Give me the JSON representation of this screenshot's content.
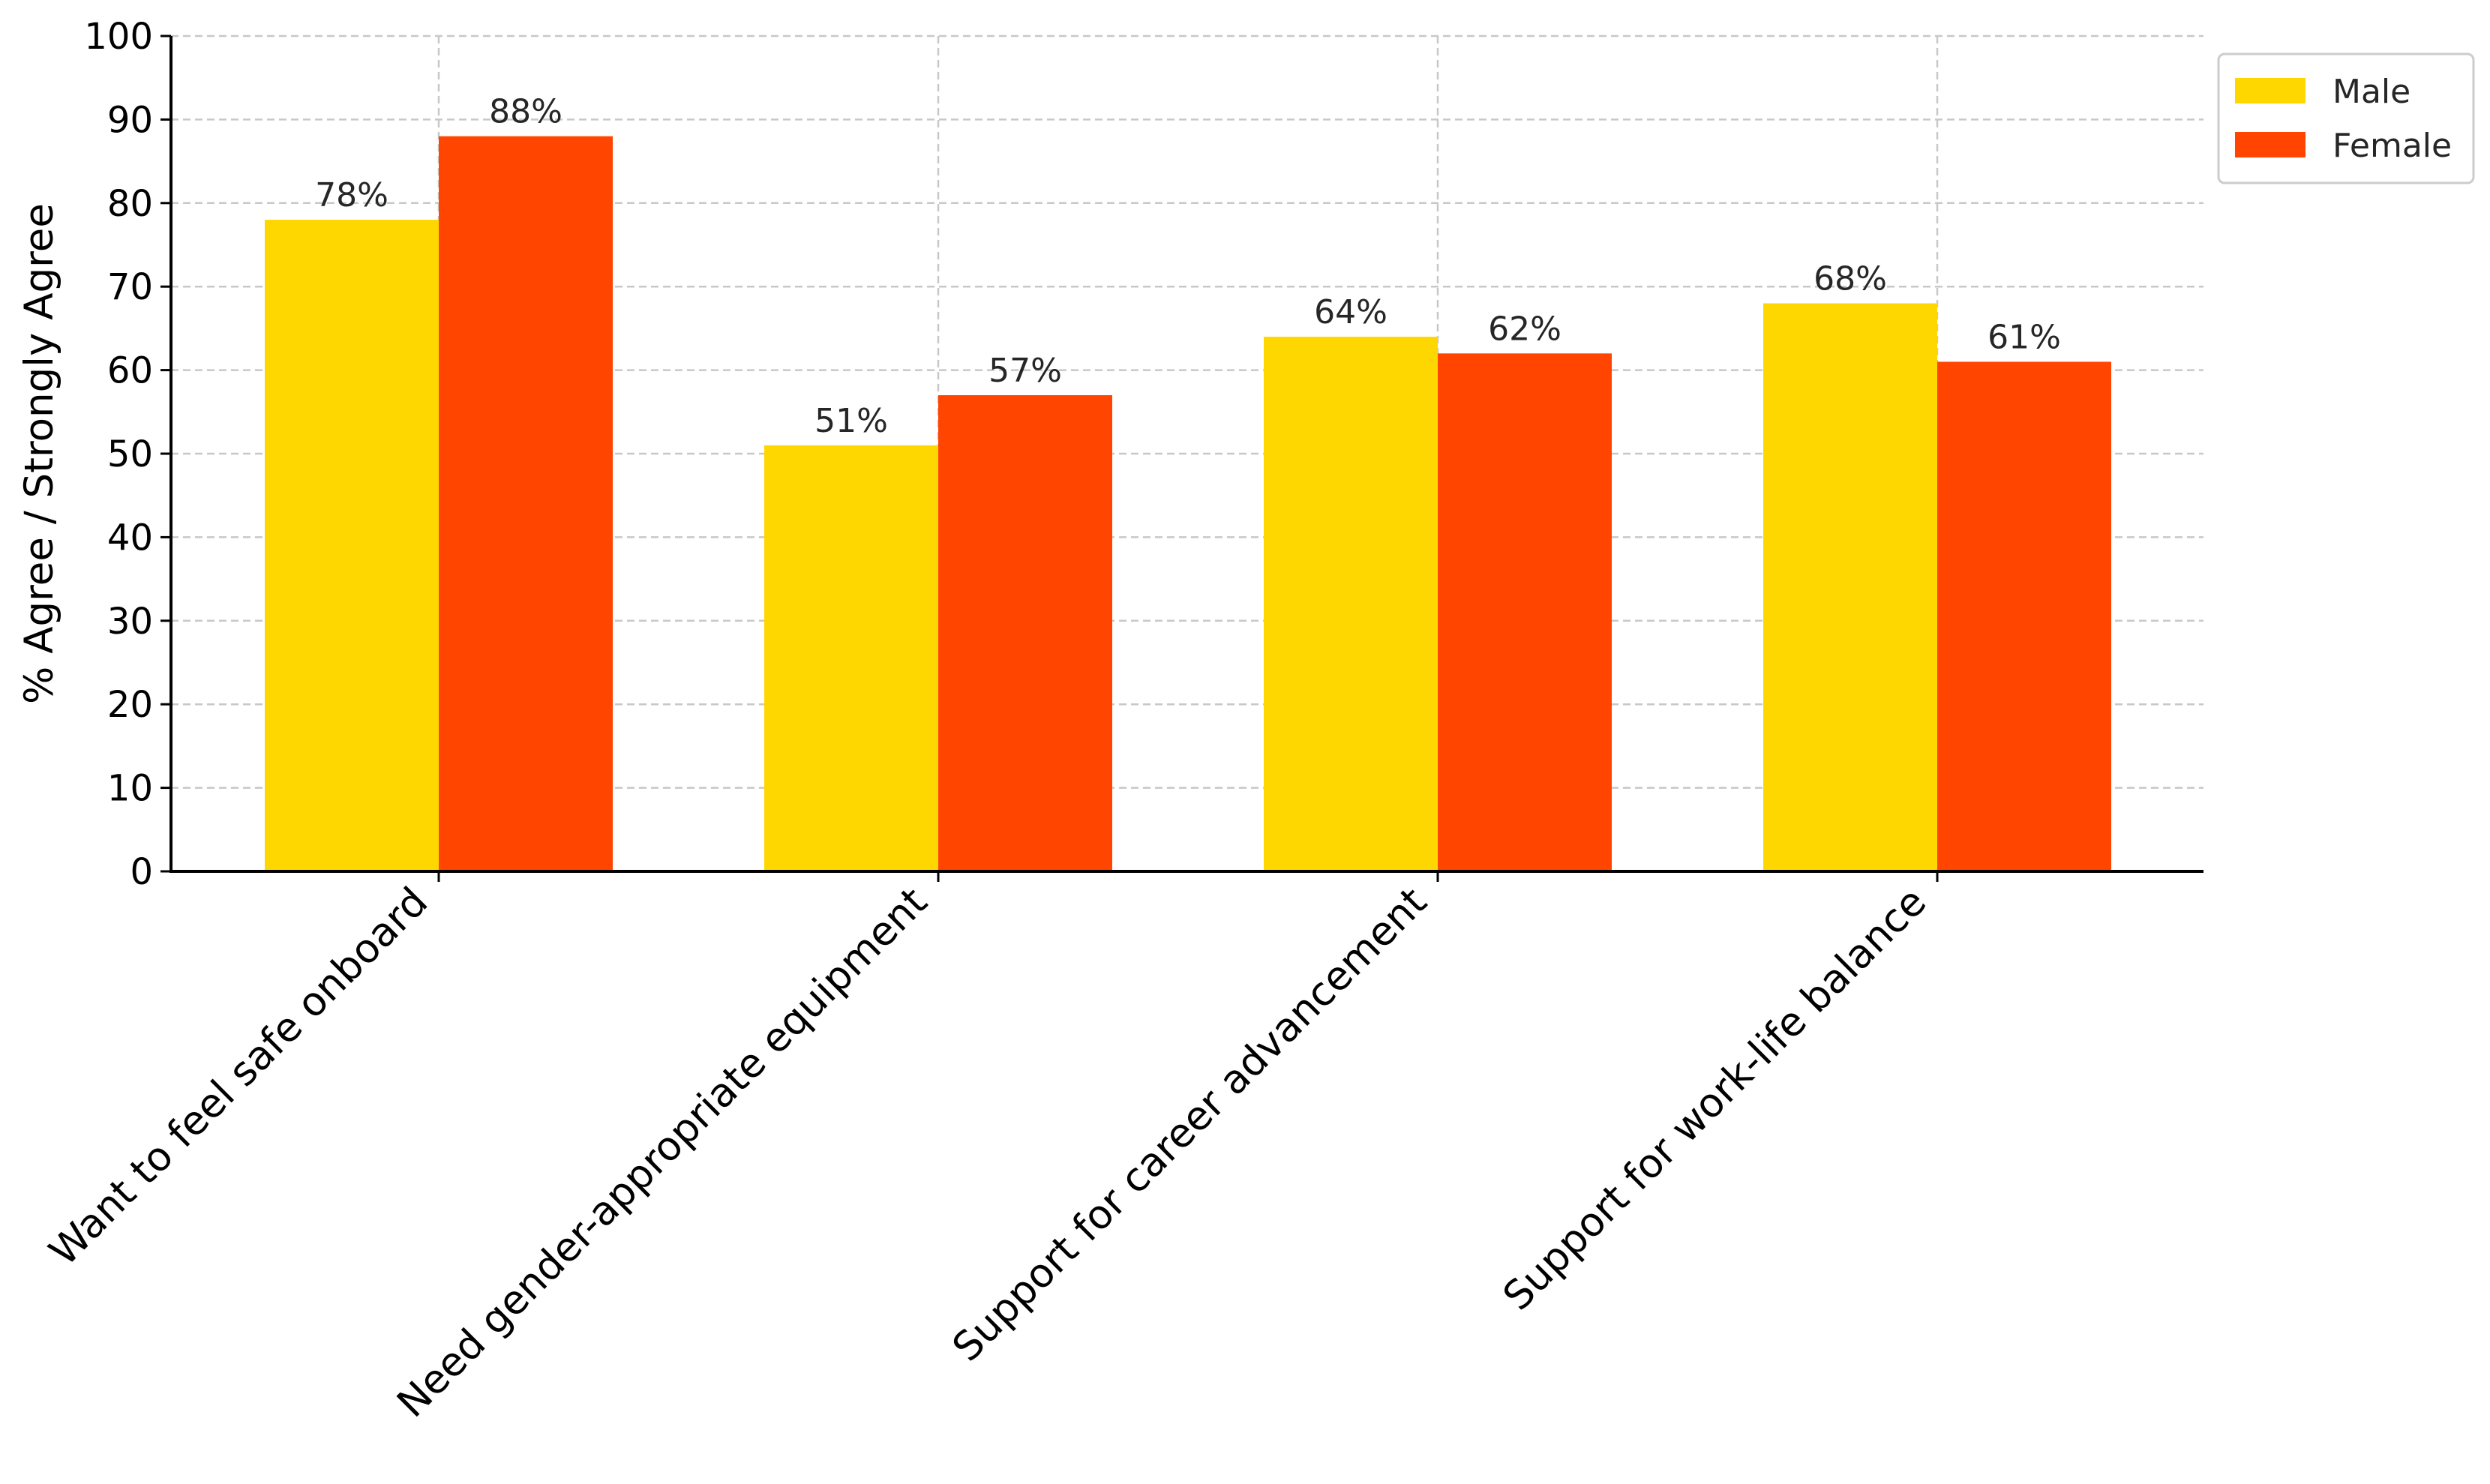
{
  "chart_data": {
    "type": "bar",
    "title": "",
    "xlabel": "",
    "ylabel": "% Agree / Strongly Agree",
    "ylim": [
      0,
      100
    ],
    "yticks": [
      0,
      10,
      20,
      30,
      40,
      50,
      60,
      70,
      80,
      90,
      100
    ],
    "grid": true,
    "legend_position": "top-right",
    "categories": [
      "Want to feel safe onboard",
      "Need gender-appropriate equipment",
      "Support for career advancement",
      "Support for work-life balance"
    ],
    "series": [
      {
        "name": "Male",
        "color": "#FFD700",
        "values": [
          78,
          51,
          64,
          68
        ],
        "labels": [
          "78%",
          "51%",
          "64%",
          "68%"
        ]
      },
      {
        "name": "Female",
        "color": "#FF4500",
        "values": [
          88,
          57,
          62,
          61
        ],
        "labels": [
          "88%",
          "57%",
          "62%",
          "61%"
        ]
      }
    ]
  }
}
